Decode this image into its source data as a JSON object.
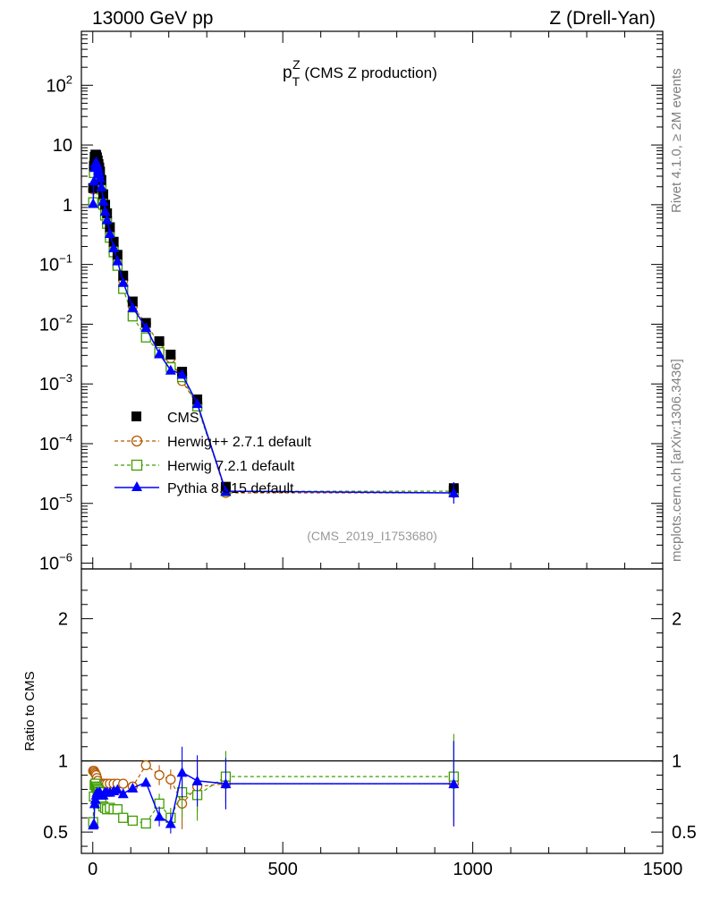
{
  "header": {
    "left": "13000 GeV pp",
    "right": "Z (Drell-Yan)"
  },
  "side_labels": {
    "rivet": "Rivet 4.1.0, ≥ 2M events",
    "mcplots": "mcplots.cern.ch [arXiv:1306.3436]"
  },
  "chart_data": {
    "type": "scatter",
    "title_main": "p",
    "title_sub": "T",
    "title_sup": "Z",
    "title_rest": " (CMS Z production)",
    "analysis_id": "(CMS_2019_I1753680)",
    "ratio_ylabel": "Ratio to CMS",
    "main_yticks": [
      {
        "value": 1e-06,
        "mant": "10",
        "exp": "−6"
      },
      {
        "value": 1e-05,
        "mant": "10",
        "exp": "−5"
      },
      {
        "value": 0.0001,
        "mant": "10",
        "exp": "−4"
      },
      {
        "value": 0.001,
        "mant": "10",
        "exp": "−3"
      },
      {
        "value": 0.01,
        "mant": "10",
        "exp": "−2"
      },
      {
        "value": 0.1,
        "mant": "10",
        "exp": "−1"
      },
      {
        "value": 1,
        "mant": "1",
        "exp": ""
      },
      {
        "value": 10,
        "mant": "10",
        "exp": ""
      },
      {
        "value": 100,
        "mant": "10",
        "exp": "2"
      }
    ],
    "main_ylim": [
      8e-07,
      800
    ],
    "xlim": [
      -30,
      1500
    ],
    "xticks": [
      "0",
      "500",
      "1000",
      "1500"
    ],
    "xtick_values": [
      0,
      500,
      1000,
      1500
    ],
    "ratio_ylim": [
      0.35,
      2.35
    ],
    "ratio_yticks": [
      "0.5",
      "1",
      "2"
    ],
    "ratio_ytick_values": [
      0.5,
      1,
      2
    ],
    "legend": [
      "CMS",
      "Herwig++ 2.7.1 default",
      "Herwig 7.2.1 default",
      "Pythia 8.315 default"
    ],
    "x": [
      1,
      3,
      5,
      7,
      9,
      11,
      13,
      15,
      17,
      19,
      22.5,
      27.5,
      32.5,
      37.5,
      45,
      55,
      65,
      80,
      105,
      140,
      175,
      205,
      235,
      275,
      350,
      950
    ],
    "series": [
      {
        "name": "CMS",
        "color": "#000000",
        "marker": "square",
        "values": [
          1.9,
          4.5,
          6.3,
          6.9,
          6.8,
          6.2,
          5.5,
          4.8,
          4.2,
          3.6,
          2.6,
          1.5,
          1.0,
          0.72,
          0.42,
          0.24,
          0.145,
          0.065,
          0.024,
          0.0105,
          0.0052,
          0.0031,
          0.0016,
          0.00055,
          1.9e-05,
          1.8e-05
        ]
      },
      {
        "name": "Herwig++ 2.7.1 default",
        "color": "#b35900",
        "marker": "circle",
        "values": [
          1.8,
          4.2,
          5.8,
          6.3,
          6.0,
          5.3,
          4.6,
          3.9,
          3.4,
          2.9,
          2.1,
          1.25,
          0.83,
          0.6,
          0.35,
          0.2,
          0.122,
          0.054,
          0.02,
          0.0102,
          0.0047,
          0.0027,
          0.00112,
          0.00045,
          1.5e-05,
          1.5e-05
        ],
        "ratio": [
          0.93,
          0.93,
          0.92,
          0.91,
          0.9,
          0.88,
          0.86,
          0.84,
          0.83,
          0.84,
          0.83,
          0.84,
          0.84,
          0.84,
          0.84,
          0.84,
          0.84,
          0.84,
          0.82,
          0.97,
          0.9,
          0.87,
          0.7,
          0.82,
          0.84,
          0.84
        ]
      },
      {
        "name": "Herwig 7.2.1 default",
        "color": "#3f9d00",
        "marker": "open-square",
        "values": [
          1.1,
          3.4,
          5.2,
          5.8,
          5.6,
          5.0,
          4.4,
          3.8,
          3.3,
          2.7,
          1.8,
          1.0,
          0.66,
          0.48,
          0.28,
          0.16,
          0.095,
          0.039,
          0.0135,
          0.006,
          0.0034,
          0.0019,
          0.0013,
          0.00042,
          1.6e-05,
          1.6e-05
        ],
        "ratio": [
          0.57,
          0.75,
          0.83,
          0.84,
          0.82,
          0.81,
          0.8,
          0.79,
          0.78,
          0.75,
          0.7,
          0.68,
          0.67,
          0.66,
          0.67,
          0.66,
          0.66,
          0.6,
          0.58,
          0.56,
          0.7,
          0.6,
          0.78,
          0.76,
          0.89,
          0.89
        ]
      },
      {
        "name": "Pythia 8.315 default",
        "color": "#0000ff",
        "marker": "triangle",
        "values": [
          1.05,
          2.5,
          4.2,
          5.0,
          5.2,
          4.8,
          4.3,
          3.8,
          3.3,
          2.8,
          2.0,
          1.15,
          0.78,
          0.56,
          0.33,
          0.19,
          0.115,
          0.05,
          0.019,
          0.0088,
          0.0032,
          0.0017,
          0.00145,
          0.00047,
          1.6e-05,
          1.5e-05
        ],
        "ratio": [
          0.55,
          0.56,
          0.7,
          0.73,
          0.76,
          0.78,
          0.77,
          0.77,
          0.78,
          0.78,
          0.76,
          0.76,
          0.78,
          0.78,
          0.78,
          0.79,
          0.8,
          0.77,
          0.81,
          0.85,
          0.61,
          0.56,
          0.92,
          0.86,
          0.84,
          0.84
        ]
      }
    ]
  }
}
